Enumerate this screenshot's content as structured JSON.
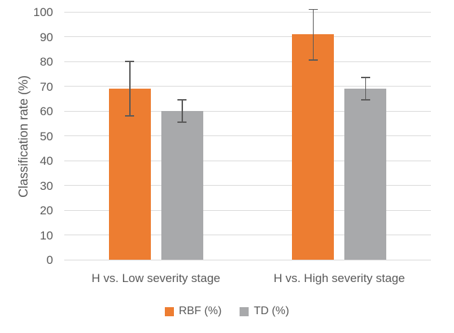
{
  "chart_data": {
    "type": "bar",
    "title": "",
    "xlabel": "",
    "ylabel": "Classification rate (%)",
    "categories": [
      "H vs. Low severity stage",
      "H vs. High severity stage"
    ],
    "series": [
      {
        "name": "RBF (%)",
        "color": "#ED7D31",
        "values": [
          69,
          91
        ],
        "error_low": [
          58,
          80.5
        ],
        "error_high": [
          80,
          101
        ]
      },
      {
        "name": "TD (%)",
        "color": "#A8A9AB",
        "values": [
          60,
          69
        ],
        "error_low": [
          55.5,
          64.5
        ],
        "error_high": [
          64.5,
          73.5
        ]
      }
    ],
    "ylim": [
      0,
      100
    ],
    "ytick_step": 10,
    "grid": true,
    "gridline_color": "#D9D9D9",
    "error_bar_color": "#595959",
    "text_color": "#595959",
    "background_color": "#FFFFFF",
    "legend_position": "bottom"
  }
}
